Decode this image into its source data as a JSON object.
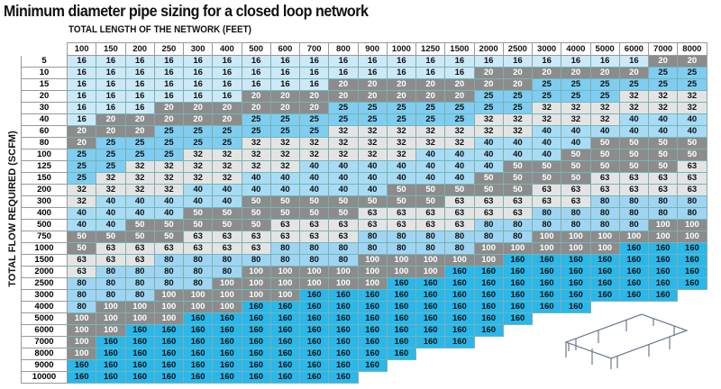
{
  "chart_data": {
    "type": "table",
    "title": "Minimum diameter pipe sizing for a closed loop network",
    "xlabel": "TOTAL LENGTH OF THE NETWORK (FEET)",
    "ylabel": "TOTAL FLOW REQUIRED (SCFM)",
    "columns": [
      "100",
      "150",
      "200",
      "250",
      "300",
      "400",
      "500",
      "600",
      "700",
      "800",
      "900",
      "1000",
      "1250",
      "1500",
      "2000",
      "2500",
      "3000",
      "4000",
      "5000",
      "6000",
      "7000",
      "8000"
    ],
    "rows": [
      {
        "label": "5",
        "values": [
          16,
          16,
          16,
          16,
          16,
          16,
          16,
          16,
          16,
          16,
          16,
          16,
          16,
          16,
          16,
          16,
          16,
          16,
          16,
          16,
          20,
          20
        ]
      },
      {
        "label": "10",
        "values": [
          16,
          16,
          16,
          16,
          16,
          16,
          16,
          16,
          16,
          16,
          16,
          16,
          16,
          16,
          20,
          20,
          20,
          20,
          20,
          20,
          25,
          25
        ]
      },
      {
        "label": "15",
        "values": [
          16,
          16,
          16,
          16,
          16,
          16,
          16,
          16,
          16,
          20,
          20,
          20,
          20,
          20,
          20,
          20,
          25,
          25,
          25,
          25,
          25,
          25
        ]
      },
      {
        "label": "20",
        "values": [
          16,
          16,
          16,
          16,
          16,
          16,
          20,
          20,
          20,
          20,
          20,
          20,
          20,
          20,
          25,
          25,
          25,
          25,
          25,
          32,
          32,
          32
        ]
      },
      {
        "label": "30",
        "values": [
          16,
          16,
          16,
          20,
          20,
          20,
          20,
          20,
          20,
          25,
          25,
          25,
          25,
          25,
          25,
          25,
          32,
          32,
          32,
          32,
          32,
          32
        ]
      },
      {
        "label": "40",
        "values": [
          16,
          20,
          20,
          20,
          20,
          20,
          25,
          25,
          25,
          25,
          25,
          25,
          25,
          25,
          32,
          32,
          32,
          32,
          32,
          40,
          40,
          40
        ]
      },
      {
        "label": "60",
        "values": [
          20,
          20,
          20,
          25,
          25,
          25,
          25,
          25,
          25,
          32,
          32,
          32,
          32,
          32,
          32,
          32,
          40,
          40,
          40,
          40,
          40,
          40
        ]
      },
      {
        "label": "80",
        "values": [
          20,
          25,
          25,
          25,
          25,
          25,
          32,
          32,
          32,
          32,
          32,
          32,
          32,
          32,
          40,
          40,
          40,
          40,
          50,
          50,
          50,
          50
        ]
      },
      {
        "label": "100",
        "values": [
          25,
          25,
          25,
          25,
          32,
          32,
          32,
          32,
          32,
          32,
          32,
          32,
          40,
          40,
          40,
          40,
          40,
          50,
          50,
          50,
          50,
          50
        ]
      },
      {
        "label": "125",
        "values": [
          25,
          25,
          32,
          32,
          32,
          32,
          32,
          32,
          40,
          40,
          40,
          40,
          40,
          40,
          40,
          50,
          50,
          50,
          50,
          50,
          50,
          63
        ]
      },
      {
        "label": "150",
        "values": [
          25,
          32,
          32,
          32,
          32,
          32,
          40,
          40,
          40,
          40,
          40,
          40,
          40,
          40,
          50,
          50,
          50,
          50,
          63,
          63,
          63,
          63
        ]
      },
      {
        "label": "200",
        "values": [
          32,
          32,
          32,
          32,
          40,
          40,
          40,
          40,
          40,
          40,
          40,
          50,
          50,
          50,
          50,
          50,
          63,
          63,
          63,
          63,
          63,
          63
        ]
      },
      {
        "label": "300",
        "values": [
          32,
          40,
          40,
          40,
          40,
          40,
          50,
          50,
          50,
          50,
          50,
          50,
          50,
          63,
          63,
          63,
          63,
          63,
          80,
          80,
          80,
          80
        ]
      },
      {
        "label": "400",
        "values": [
          40,
          40,
          40,
          40,
          50,
          50,
          50,
          50,
          50,
          50,
          63,
          63,
          63,
          63,
          63,
          63,
          80,
          80,
          80,
          80,
          80,
          80
        ]
      },
      {
        "label": "500",
        "values": [
          40,
          40,
          50,
          50,
          50,
          50,
          50,
          63,
          63,
          63,
          63,
          63,
          63,
          63,
          80,
          80,
          80,
          80,
          80,
          80,
          100,
          100
        ]
      },
      {
        "label": "750",
        "values": [
          50,
          50,
          50,
          50,
          63,
          63,
          63,
          63,
          63,
          63,
          80,
          80,
          80,
          80,
          80,
          80,
          100,
          100,
          100,
          100,
          100,
          100
        ]
      },
      {
        "label": "1000",
        "values": [
          50,
          63,
          63,
          63,
          63,
          63,
          63,
          80,
          80,
          80,
          80,
          80,
          80,
          80,
          100,
          100,
          100,
          100,
          100,
          160,
          160,
          160
        ]
      },
      {
        "label": "1500",
        "values": [
          63,
          63,
          63,
          80,
          80,
          80,
          80,
          80,
          80,
          80,
          100,
          100,
          100,
          100,
          100,
          160,
          160,
          160,
          160,
          160,
          160,
          160
        ]
      },
      {
        "label": "2000",
        "values": [
          63,
          80,
          80,
          80,
          80,
          80,
          100,
          100,
          100,
          100,
          100,
          100,
          100,
          160,
          160,
          160,
          160,
          160,
          160,
          160,
          160,
          160
        ]
      },
      {
        "label": "2500",
        "values": [
          80,
          80,
          80,
          80,
          80,
          100,
          100,
          100,
          100,
          100,
          100,
          160,
          160,
          160,
          160,
          160,
          160,
          160,
          160,
          160,
          160,
          160
        ]
      },
      {
        "label": "3000",
        "values": [
          80,
          80,
          80,
          100,
          100,
          100,
          100,
          100,
          160,
          160,
          160,
          160,
          160,
          160,
          160,
          160,
          160,
          160,
          160,
          160,
          160,
          null
        ]
      },
      {
        "label": "4000",
        "values": [
          80,
          100,
          100,
          100,
          100,
          100,
          160,
          160,
          160,
          160,
          160,
          160,
          160,
          160,
          160,
          160,
          160,
          160,
          null,
          null,
          null,
          null
        ]
      },
      {
        "label": "5000",
        "values": [
          100,
          100,
          100,
          100,
          160,
          160,
          160,
          160,
          160,
          160,
          160,
          160,
          160,
          160,
          160,
          160,
          null,
          null,
          null,
          null,
          null,
          null
        ]
      },
      {
        "label": "6000",
        "values": [
          100,
          100,
          160,
          160,
          160,
          160,
          160,
          160,
          160,
          160,
          160,
          160,
          160,
          160,
          160,
          null,
          null,
          null,
          null,
          null,
          null,
          null
        ]
      },
      {
        "label": "7000",
        "values": [
          100,
          160,
          160,
          160,
          160,
          160,
          160,
          160,
          160,
          160,
          160,
          160,
          160,
          160,
          null,
          null,
          null,
          null,
          null,
          null,
          null,
          null
        ]
      },
      {
        "label": "8000",
        "values": [
          100,
          160,
          160,
          160,
          160,
          160,
          160,
          160,
          160,
          160,
          160,
          160,
          null,
          null,
          null,
          null,
          null,
          null,
          null,
          null,
          null,
          null
        ]
      },
      {
        "label": "9000",
        "values": [
          160,
          160,
          160,
          160,
          160,
          160,
          160,
          160,
          160,
          160,
          160,
          null,
          null,
          null,
          null,
          null,
          null,
          null,
          null,
          null,
          null,
          null
        ]
      },
      {
        "label": "10000",
        "values": [
          160,
          160,
          160,
          160,
          160,
          160,
          160,
          160,
          160,
          160,
          null,
          null,
          null,
          null,
          null,
          null,
          null,
          null,
          null,
          null,
          null,
          null
        ]
      }
    ],
    "cell_colors": {
      "16": "#cde9f8",
      "20": "#8c8c8c",
      "25": "#7fcdf0",
      "32": "#e4e4e4",
      "40": "#a8dcf5",
      "50": "#8c8c8c",
      "63": "#e4e4e4",
      "80": "#9fd5f2",
      "100": "#8c8c8c",
      "160": "#2ab7ea"
    },
    "light_text_values": [
      20,
      50,
      100
    ]
  }
}
